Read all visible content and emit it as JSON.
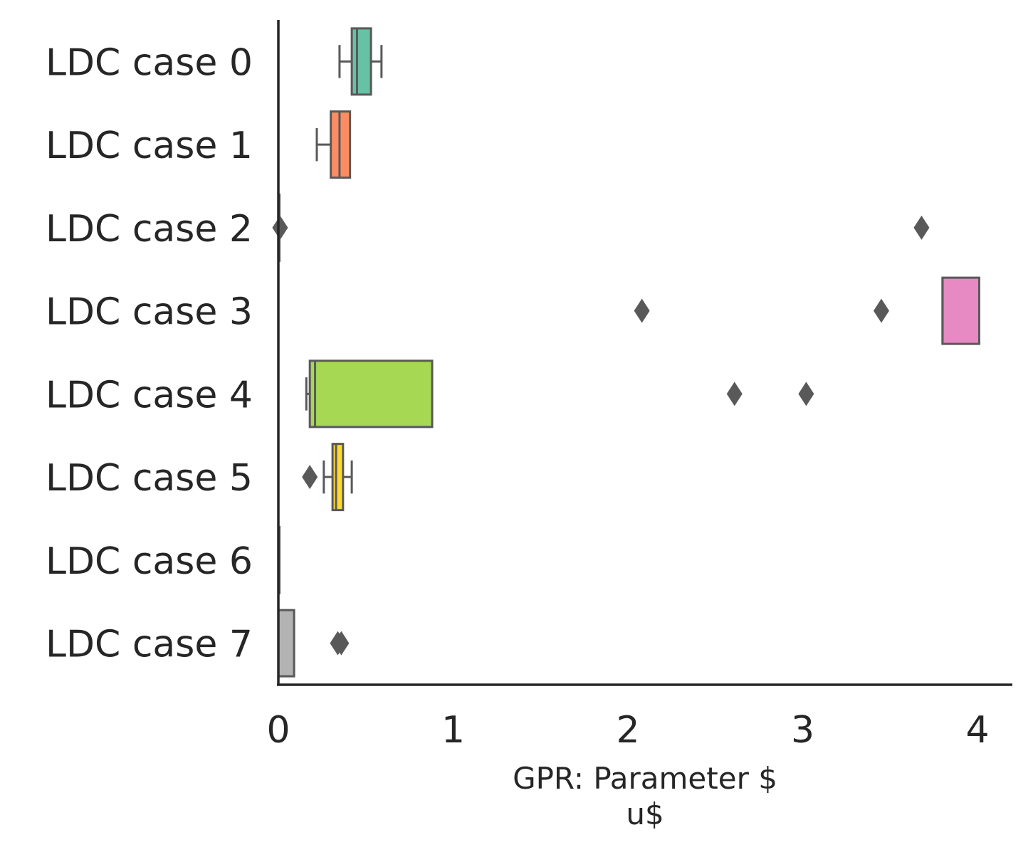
{
  "chart_data": {
    "type": "box",
    "orientation": "horizontal",
    "xlabel": "GPR: Parameter $\nu$",
    "ylabel": "",
    "title": "",
    "xlim": [
      0,
      4.2
    ],
    "xticks": [
      "0",
      "1",
      "2",
      "3",
      "4"
    ],
    "grid": false,
    "categories": [
      "LDC case 0",
      "LDC case 1",
      "LDC case 2",
      "LDC case 3",
      "LDC case 4",
      "LDC case 5",
      "LDC case 6",
      "LDC case 7"
    ],
    "colors": [
      "#66c2a5",
      "#fc8d62",
      "#8da0cb",
      "#e78ac3",
      "#a6d854",
      "#ffd92f",
      "#e5c494",
      "#b3b3b3"
    ],
    "series": [
      {
        "whislo": 0.35,
        "q1": 0.42,
        "med": 0.45,
        "q3": 0.53,
        "whishi": 0.59,
        "fliers": []
      },
      {
        "whislo": 0.22,
        "q1": 0.3,
        "med": 0.35,
        "q3": 0.41,
        "whishi": 0.41,
        "fliers": []
      },
      {
        "whislo": 0.0,
        "q1": 0.0,
        "med": 0.0,
        "q3": 0.0,
        "whishi": 0.0,
        "fliers": [
          0.01,
          3.68
        ]
      },
      {
        "whislo": 3.8,
        "q1": 3.8,
        "med": 3.8,
        "q3": 4.01,
        "whishi": 4.01,
        "fliers": [
          2.08,
          3.45
        ]
      },
      {
        "whislo": 0.16,
        "q1": 0.18,
        "med": 0.21,
        "q3": 0.88,
        "whishi": 0.88,
        "fliers": [
          2.61,
          3.02
        ]
      },
      {
        "whislo": 0.26,
        "q1": 0.31,
        "med": 0.33,
        "q3": 0.37,
        "whishi": 0.42,
        "fliers": [
          0.18
        ]
      },
      {
        "whislo": 0.0,
        "q1": 0.0,
        "med": 0.0,
        "q3": 0.005,
        "whishi": 0.005,
        "fliers": []
      },
      {
        "whislo": 0.0,
        "q1": 0.0,
        "med": 0.0,
        "q3": 0.09,
        "whishi": 0.09,
        "fliers": [
          0.34,
          0.36
        ]
      }
    ]
  }
}
